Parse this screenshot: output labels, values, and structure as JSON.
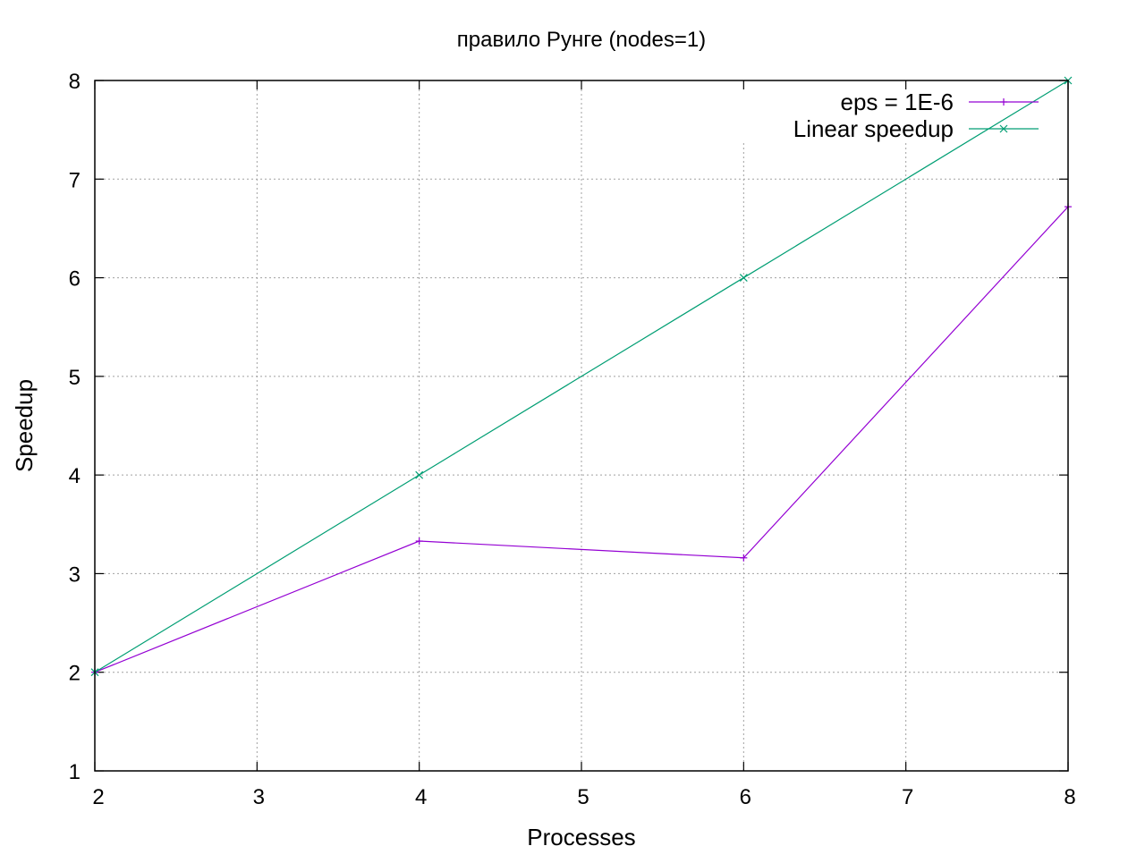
{
  "chart_data": {
    "type": "line",
    "title": "правило Рунге (nodes=1)",
    "xlabel": "Processes",
    "ylabel": "Speedup",
    "xlim": [
      2,
      8
    ],
    "ylim": [
      1,
      8
    ],
    "xticks": [
      2,
      3,
      4,
      5,
      6,
      7,
      8
    ],
    "yticks": [
      1,
      2,
      3,
      4,
      5,
      6,
      7,
      8
    ],
    "grid": true,
    "legend_position": "top-right",
    "series": [
      {
        "name": "eps = 1E-6",
        "color": "#9400d3",
        "marker": "plus",
        "x": [
          2,
          4,
          6,
          8
        ],
        "y": [
          2.0,
          3.33,
          3.16,
          6.72
        ]
      },
      {
        "name": "Linear speedup",
        "color": "#009e73",
        "marker": "cross",
        "x": [
          2,
          4,
          6,
          8
        ],
        "y": [
          2,
          4,
          6,
          8
        ]
      }
    ]
  }
}
